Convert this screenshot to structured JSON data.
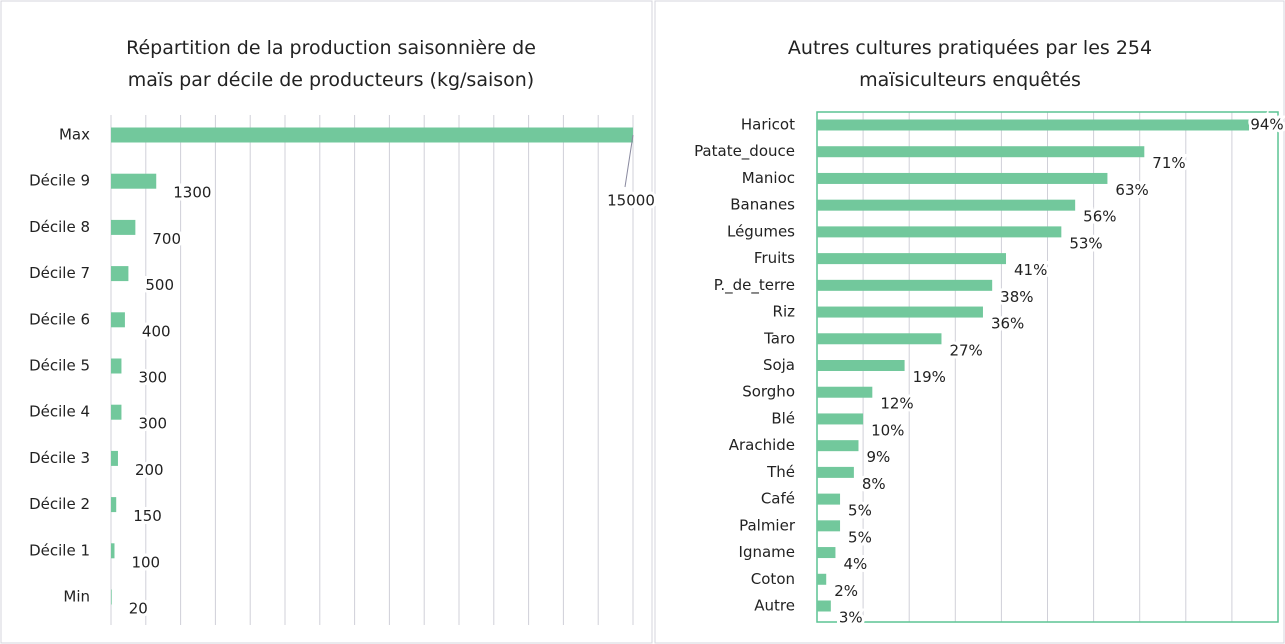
{
  "chart_data": [
    {
      "type": "bar",
      "orientation": "horizontal",
      "title": "Répartition de la production saisonnière de\nmaïs par décile de producteurs (kg/saison)",
      "categories": [
        "Max",
        "Décile 9",
        "Décile 8",
        "Décile 7",
        "Décile 6",
        "Décile 5",
        "Décile 4",
        "Décile 3",
        "Décile 2",
        "Décile 1",
        "Min"
      ],
      "values": [
        15000,
        1300,
        700,
        500,
        400,
        300,
        300,
        200,
        150,
        100,
        20
      ],
      "color": "#72c89c",
      "xlim": [
        0,
        15000
      ],
      "xticks": [
        0,
        1000,
        2000,
        3000,
        4000,
        5000,
        6000,
        7000,
        8000,
        9000,
        10000,
        11000,
        12000,
        13000,
        14000,
        15000
      ],
      "tick_labels": false,
      "grid": true
    },
    {
      "type": "bar",
      "orientation": "horizontal",
      "title": "Autres cultures pratiquées par les 254\nmaïsiculteurs enquêtés",
      "categories": [
        "Haricot",
        "Patate_douce",
        "Manioc",
        "Bananes",
        "Légumes",
        "Fruits",
        "P._de_terre",
        "Riz",
        "Taro",
        "Soja",
        "Sorgho",
        "Blé",
        "Arachide",
        "Thé",
        "Café",
        "Palmier",
        "Igname",
        "Coton",
        "Autre"
      ],
      "values": [
        94,
        71,
        63,
        56,
        53,
        41,
        38,
        36,
        27,
        19,
        12,
        10,
        9,
        8,
        5,
        5,
        4,
        2,
        3
      ],
      "value_labels": [
        "94%",
        "71%",
        "63%",
        "56%",
        "53%",
        "41%",
        "38%",
        "36%",
        "27%",
        "19%",
        "12%",
        "10%",
        "9%",
        "8%",
        "5%",
        "5%",
        "4%",
        "2%",
        "3%"
      ],
      "color": "#72c89c",
      "xlim": [
        0,
        100
      ],
      "xticks": [
        0,
        10,
        20,
        30,
        40,
        50,
        60,
        70,
        80,
        90,
        100
      ],
      "tick_labels": false,
      "grid": true
    }
  ]
}
